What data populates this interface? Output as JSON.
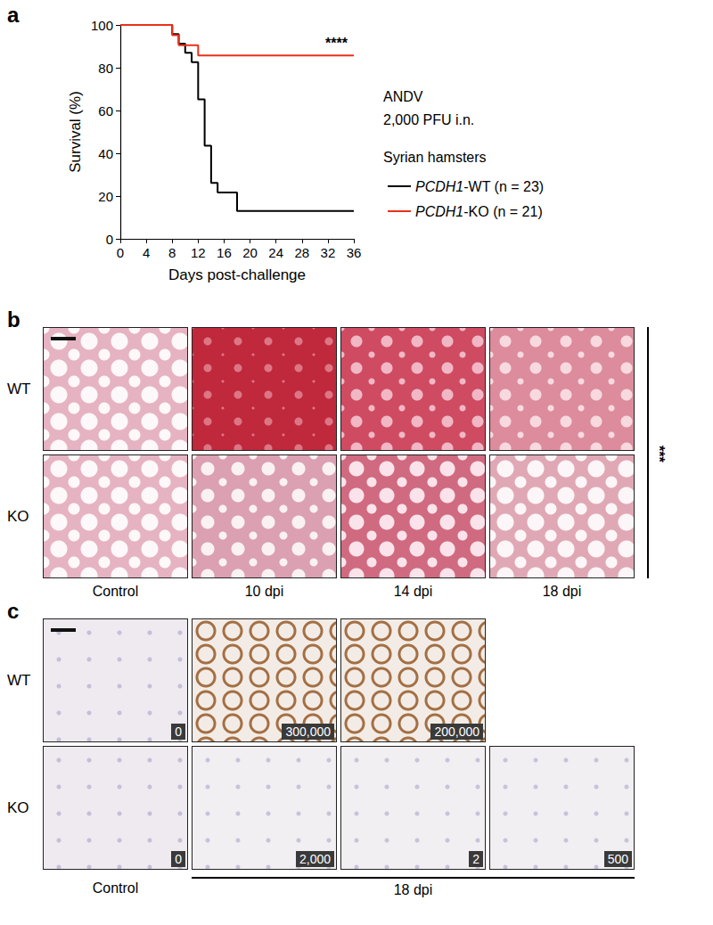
{
  "chart_data": {
    "type": "line",
    "panel_label": "a",
    "x_label": "Days post-challenge",
    "y_label": "Survival (%)",
    "xlim": [
      0,
      36
    ],
    "xticks": [
      0,
      4,
      8,
      12,
      16,
      20,
      24,
      28,
      32,
      36
    ],
    "ylim": [
      0,
      100
    ],
    "yticks": [
      0,
      20,
      40,
      60,
      80,
      100
    ],
    "line_style": "step",
    "grid": false,
    "annotations": [
      "ANDV",
      "2,000 PFU i.n.",
      "Syrian hamsters"
    ],
    "significance": "****",
    "x": [
      0,
      8,
      9,
      10,
      11,
      12,
      13,
      14,
      15,
      18,
      36
    ],
    "series": [
      {
        "name": "PCDH1-WT (n = 23)",
        "color": "#000000",
        "values": [
          100,
          95.7,
          91.3,
          87,
          82.6,
          65.2,
          43.5,
          26.1,
          21.7,
          13,
          13
        ]
      },
      {
        "name": "PCDH1-KO (n = 21)",
        "color": "#e8311a",
        "values": [
          100,
          95.2,
          90.5,
          90.5,
          90.5,
          85.7,
          85.7,
          85.7,
          85.7,
          85.7,
          85.7
        ]
      }
    ]
  },
  "panel_b": {
    "label": "b",
    "rows": [
      "WT",
      "KO"
    ],
    "columns": [
      "Control",
      "10 dpi",
      "14 dpi",
      "18 dpi"
    ],
    "significance": "***"
  },
  "panel_c": {
    "label": "c",
    "rows": [
      {
        "name": "WT",
        "cells": [
          "0",
          "300,000",
          "200,000"
        ]
      },
      {
        "name": "KO",
        "cells": [
          "0",
          "2,000",
          "2",
          "500"
        ]
      }
    ],
    "control_label": "Control",
    "group_label": "18 dpi"
  }
}
